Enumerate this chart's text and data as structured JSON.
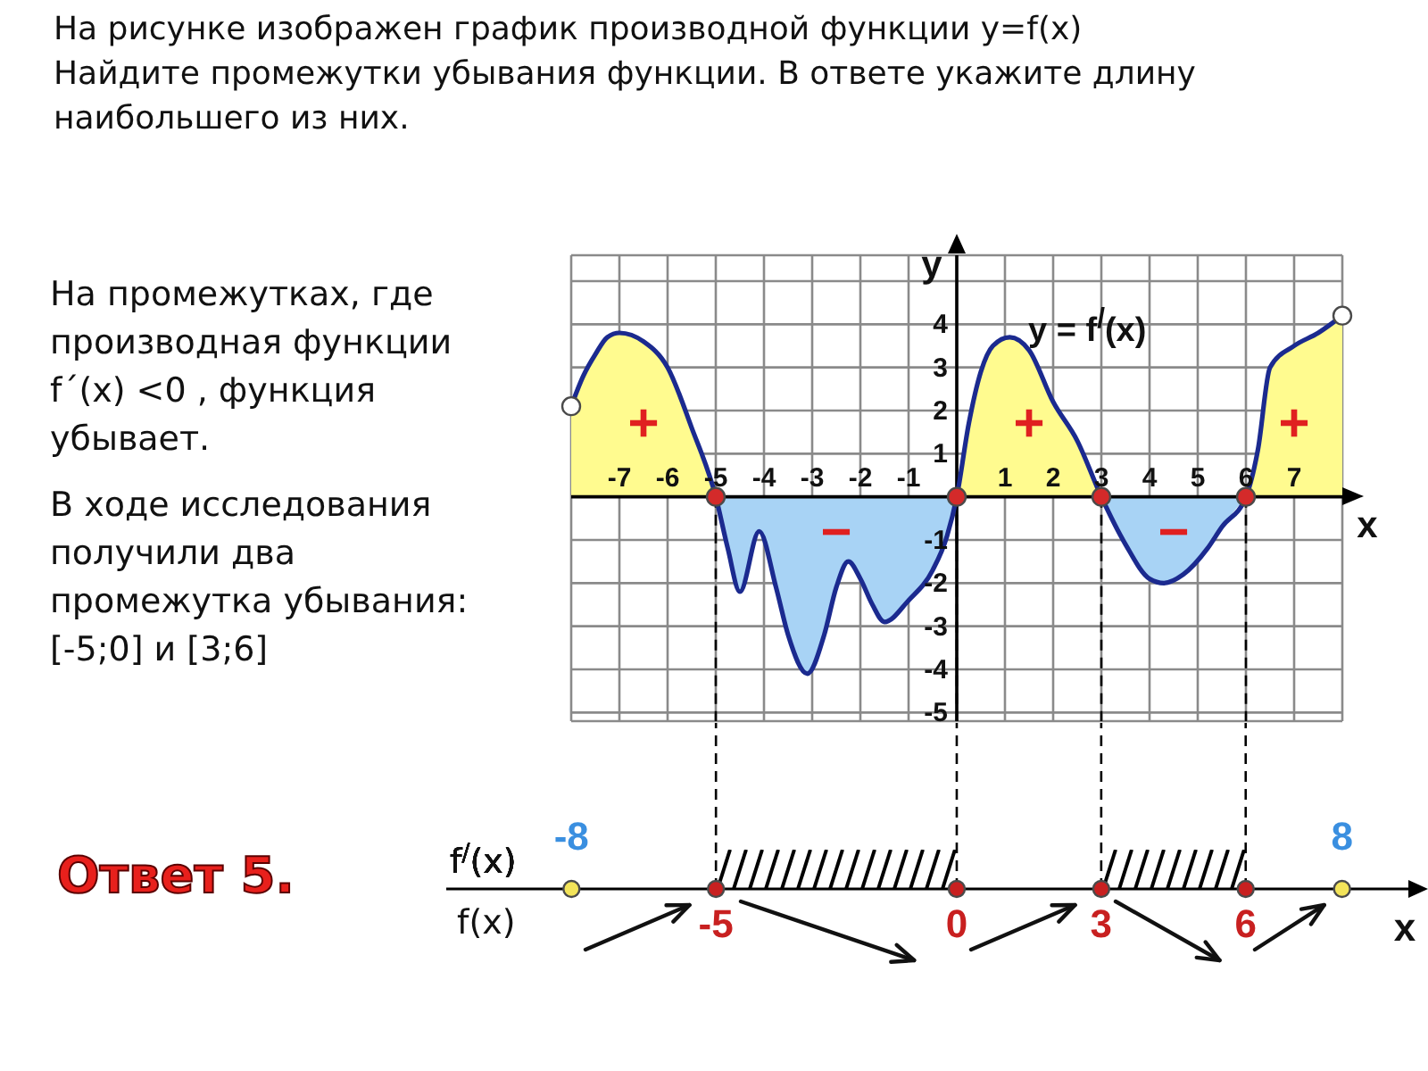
{
  "chart_data": [
    {
      "type": "line",
      "title": "На рисунке изображен график производной функции y=f(x)\nНайдите промежутки убывания функции. В ответе укажите длину наибольшего из них.",
      "xlabel": "x",
      "ylabel": "y",
      "x": [
        -8,
        -7.75,
        -7.5,
        -7.25,
        -7,
        -6.5,
        -6,
        -5.5,
        -5,
        -4.75,
        -4.5,
        -4.1,
        -3.75,
        -3.5,
        -3.1,
        -2.75,
        -2.5,
        -2.25,
        -2,
        -1.75,
        -1.5,
        -1,
        -0.5,
        -0.2,
        0,
        0.25,
        0.5,
        0.75,
        1.1,
        1.5,
        2,
        2.5,
        3,
        3.5,
        4,
        4.3,
        4.7,
        5.2,
        5.5,
        6,
        6.25,
        6.5,
        7,
        7.5,
        8
      ],
      "series": [
        {
          "type": "area",
          "color": "#fffb8f",
          "values": [
            2.1,
            2.8,
            3.3,
            3.7,
            3.8,
            3.6,
            3.0,
            1.6,
            0,
            null,
            null,
            null,
            null,
            null,
            null,
            null,
            null,
            null,
            null,
            null,
            null,
            null,
            null,
            null,
            0,
            1.7,
            2.9,
            3.5,
            3.7,
            3.4,
            2.2,
            1.3,
            0,
            null,
            null,
            null,
            null,
            null,
            null,
            0,
            1.1,
            3.0,
            3.5,
            3.8,
            4.2
          ]
        },
        {
          "type": "area",
          "color": "#a8d3f5",
          "values": [
            null,
            null,
            null,
            null,
            null,
            null,
            null,
            null,
            0,
            -1.2,
            -2.2,
            -0.8,
            -2.1,
            -3.2,
            -4.1,
            -3.2,
            -2.1,
            -1.5,
            -1.9,
            -2.5,
            -2.9,
            -2.4,
            -1.7,
            -0.9,
            0,
            null,
            null,
            null,
            null,
            null,
            null,
            null,
            0,
            -1.1,
            -1.9,
            -2.0,
            -1.8,
            -1.2,
            -0.7,
            0,
            null,
            null,
            null,
            null,
            null
          ]
        },
        {
          "type": "line",
          "name": "y = f$^{/}$(x)",
          "color": "#1b2a8f",
          "values": [
            2.1,
            2.8,
            3.3,
            3.7,
            3.8,
            3.6,
            3.0,
            1.6,
            0,
            -1.2,
            -2.2,
            -0.8,
            -2.1,
            -3.2,
            -4.1,
            -3.2,
            -2.1,
            -1.5,
            -1.9,
            -2.5,
            -2.9,
            -2.4,
            -1.7,
            -0.9,
            0,
            1.7,
            2.9,
            3.5,
            3.7,
            3.4,
            2.2,
            1.3,
            0,
            -1.1,
            -1.9,
            -2.0,
            -1.8,
            -1.2,
            -0.7,
            0,
            1.1,
            3.0,
            3.5,
            3.8,
            4.2
          ]
        },
        {
          "type": "scatter",
          "marker": "circle",
          "color": "#d42a2a",
          "x": [
            -5,
            0,
            3,
            6
          ],
          "values": [
            0,
            0,
            0,
            0
          ]
        },
        {
          "type": "scatter",
          "marker": "circle",
          "color": "#ffffff",
          "x": [
            -8,
            8
          ],
          "values": [
            2.1,
            4.2
          ]
        }
      ],
      "xlim": [
        -8,
        8
      ],
      "xticks": [
        {
          "value": -8,
          "label": null
        },
        -7,
        -6,
        -5,
        -4,
        -3,
        -2,
        -1,
        {
          "value": 0,
          "label": null
        },
        1,
        2,
        3,
        4,
        5,
        6,
        7,
        {
          "value": 8,
          "label": null
        }
      ],
      "ylim": [
        -5.2,
        5.6
      ],
      "yticks": [
        -5,
        -4,
        -3,
        -2,
        -1,
        {
          "value": 0,
          "label": null
        },
        1,
        2,
        3,
        4,
        {
          "value": 5,
          "label": null
        }
      ],
      "grid": true,
      "ref_lines": [
        {
          "axis": "x",
          "value": -5,
          "color": "#000000",
          "line_style": "dashed"
        },
        {
          "axis": "x",
          "value": 0,
          "color": "#000000",
          "line_style": "dashed"
        },
        {
          "axis": "x",
          "value": 3,
          "color": "#000000",
          "line_style": "dashed"
        },
        {
          "axis": "x",
          "value": 6,
          "color": "#000000",
          "line_style": "dashed"
        }
      ],
      "annotations": [
        "+",
        "−",
        "+",
        "−",
        "+",
        "На промежутках, где\nпроизводная функции\nf´(x) <0 , функция\nубывает.",
        "В ходе исследования\nполучили два\nпромежутка убывания:\n[-5;0] и [3;6]"
      ]
    },
    {
      "type": "bar",
      "orientation": "horizontal",
      "categories": [
        "f$^{/}$(x)"
      ],
      "series": [
        {
          "values": [
            5
          ],
          "base": [
            -5
          ],
          "color": "#000000"
        },
        {
          "values": [
            3
          ],
          "base": [
            3
          ],
          "color": "#000000"
        },
        {
          "type": "scatter",
          "color": "#f3e45a",
          "x": [
            "f$^{/}$(x)",
            "f$^{/}$(x)"
          ],
          "values": [
            -8,
            8
          ],
          "value_labels": [
            "-8",
            "8"
          ]
        },
        {
          "type": "scatter",
          "color": "#c82020",
          "x": [
            "f$^{/}$(x)",
            "f$^{/}$(x)",
            "f$^{/}$(x)",
            "f$^{/}$(x)"
          ],
          "values": [
            -5,
            0,
            3,
            6
          ]
        }
      ],
      "xlim": [
        -10.6,
        9.6
      ],
      "xticks": [
        -5,
        0,
        3,
        6
      ],
      "xlabel": "x",
      "ref_lines": [
        {
          "axis": "x",
          "value": -5,
          "color": "#000000",
          "line_style": "dashed"
        },
        {
          "axis": "x",
          "value": 0,
          "color": "#000000",
          "line_style": "dashed"
        },
        {
          "axis": "x",
          "value": 3,
          "color": "#000000",
          "line_style": "dashed"
        },
        {
          "axis": "x",
          "value": 6,
          "color": "#000000",
          "line_style": "dashed"
        }
      ],
      "annotations": [
        "f(x)",
        "Ответ 5."
      ]
    }
  ]
}
